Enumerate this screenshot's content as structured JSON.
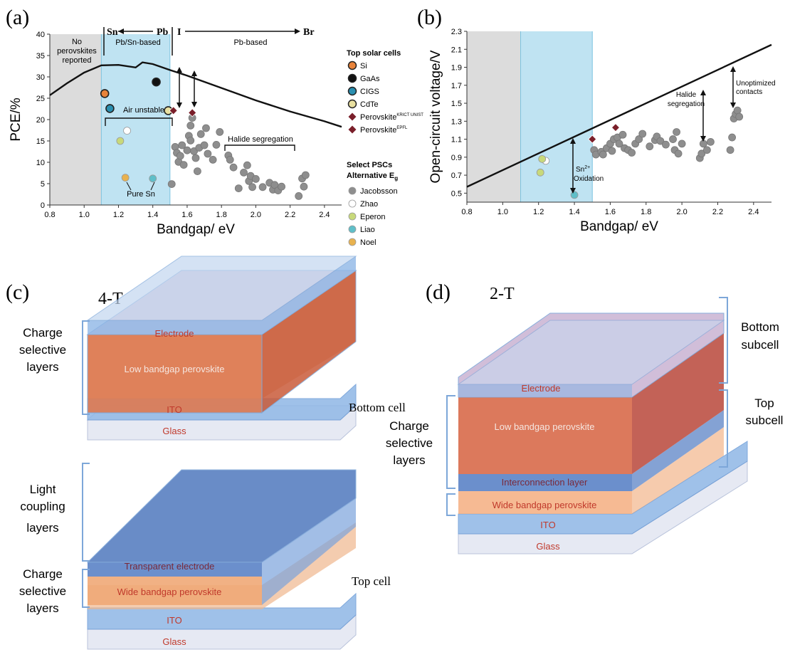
{
  "panel_labels": {
    "a": "(a)",
    "b": "(b)",
    "c": "(c)",
    "d": "(d)"
  },
  "colors": {
    "gray_region": "#dcdcdc",
    "blue_region": "#bfe3f2",
    "curve": "#111111",
    "jacobsson": "#8e8e8e",
    "zhao": "#ffffff",
    "eperon": "#c8d97a",
    "liao": "#5fbfc9",
    "noel": "#e8b24f",
    "si": "#e8833a",
    "gaas": "#111111",
    "cigs": "#2a8fb0",
    "cdte": "#e9e0a0",
    "perovskite": "#7a1f2a",
    "layer_text": "#c0392b"
  },
  "chart_data": [
    {
      "type": "scatter",
      "panel": "(a)",
      "xlabel": "Bandgap/ eV",
      "ylabel": "PCE/%",
      "xlim": [
        0.8,
        2.5
      ],
      "ylim": [
        0,
        40
      ],
      "xticks": [
        "0.8",
        "1.0",
        "1.2",
        "1.4",
        "1.6",
        "1.8",
        "2.0",
        "2.2",
        "2.4"
      ],
      "yticks": [
        "0",
        "5",
        "10",
        "15",
        "20",
        "25",
        "30",
        "35",
        "40"
      ],
      "top_labels": {
        "sn": "Sn",
        "pb": "Pb",
        "i": "I",
        "br": "Br"
      },
      "region_labels": {
        "none": [
          "No",
          "perovskites",
          "reported"
        ],
        "pbsn": "Pb/Sn-based",
        "pb": "Pb-based"
      },
      "annotations": {
        "air_unstable": "Air unstable",
        "pure_sn": "Pure Sn",
        "halide": "Halide segregation"
      },
      "legend_top_title": "Top solar cells",
      "legend_top": [
        {
          "name": "Si",
          "sup": ""
        },
        {
          "name": "GaAs",
          "sup": ""
        },
        {
          "name": "CIGS",
          "sup": ""
        },
        {
          "name": "CdTe",
          "sup": ""
        },
        {
          "name": "Perovskite",
          "sup": "KRICT UNIST"
        },
        {
          "name": "Perovskite",
          "sup": "EPFL"
        }
      ],
      "legend_psc_title": "Select PSCs",
      "legend_psc_subtitle": "Alternative E",
      "legend_psc_subtitle_sub": "g",
      "legend_psc": [
        "Jacobsson",
        "Zhao",
        "Eperon",
        "Liao",
        "Noel"
      ],
      "limit_curve": [
        [
          0.8,
          25.7
        ],
        [
          0.9,
          28.5
        ],
        [
          1.0,
          31.0
        ],
        [
          1.1,
          32.7
        ],
        [
          1.2,
          32.8
        ],
        [
          1.3,
          32.2
        ],
        [
          1.34,
          33.4
        ],
        [
          1.4,
          33.0
        ],
        [
          1.5,
          31.6
        ],
        [
          1.6,
          30.3
        ],
        [
          1.8,
          27.4
        ],
        [
          2.0,
          24.5
        ],
        [
          2.2,
          21.9
        ],
        [
          2.4,
          19.6
        ],
        [
          2.5,
          18.3
        ]
      ],
      "top_cells": [
        {
          "name": "Si",
          "x": 1.12,
          "y": 26.1
        },
        {
          "name": "GaAs",
          "x": 1.42,
          "y": 28.8
        },
        {
          "name": "CIGS",
          "x": 1.15,
          "y": 22.6
        },
        {
          "name": "CdTe",
          "x": 1.49,
          "y": 22.1
        },
        {
          "name": "KRICT",
          "x": 1.52,
          "y": 22.1
        },
        {
          "name": "EPFL",
          "x": 1.63,
          "y": 21.6
        }
      ],
      "series": [
        {
          "name": "Zhao",
          "points": [
            [
              1.25,
              17.4
            ]
          ]
        },
        {
          "name": "Eperon",
          "points": [
            [
              1.21,
              15.0
            ]
          ]
        },
        {
          "name": "Noel",
          "points": [
            [
              1.24,
              6.4
            ]
          ]
        },
        {
          "name": "Liao",
          "points": [
            [
              1.4,
              6.2
            ]
          ]
        },
        {
          "name": "Jacobsson",
          "points": [
            [
              1.51,
              4.9
            ],
            [
              1.53,
              13.6
            ],
            [
              1.54,
              12.2
            ],
            [
              1.55,
              10.1
            ],
            [
              1.56,
              11.5
            ],
            [
              1.57,
              14.0
            ],
            [
              1.58,
              9.4
            ],
            [
              1.6,
              12.8
            ],
            [
              1.61,
              16.2
            ],
            [
              1.62,
              15.1
            ],
            [
              1.62,
              18.6
            ],
            [
              1.63,
              20.4
            ],
            [
              1.64,
              12.6
            ],
            [
              1.65,
              11.0
            ],
            [
              1.66,
              7.9
            ],
            [
              1.67,
              13.4
            ],
            [
              1.68,
              16.6
            ],
            [
              1.7,
              14.0
            ],
            [
              1.71,
              18.0
            ],
            [
              1.72,
              12.0
            ],
            [
              1.75,
              10.6
            ],
            [
              1.77,
              14.1
            ],
            [
              1.79,
              17.1
            ],
            [
              1.84,
              11.6
            ],
            [
              1.85,
              10.6
            ],
            [
              1.87,
              8.8
            ],
            [
              1.9,
              3.9
            ],
            [
              1.93,
              7.6
            ],
            [
              1.95,
              9.3
            ],
            [
              1.96,
              5.6
            ],
            [
              1.97,
              6.8
            ],
            [
              1.98,
              4.2
            ],
            [
              2.0,
              6.1
            ],
            [
              2.04,
              4.2
            ],
            [
              2.08,
              5.2
            ],
            [
              2.1,
              3.6
            ],
            [
              2.11,
              4.7
            ],
            [
              2.13,
              3.4
            ],
            [
              2.15,
              4.3
            ],
            [
              2.25,
              2.1
            ],
            [
              2.27,
              6.2
            ],
            [
              2.28,
              4.3
            ],
            [
              2.29,
              7.0
            ]
          ]
        }
      ]
    },
    {
      "type": "scatter",
      "panel": "(b)",
      "xlabel": "Bandgap/ eV",
      "ylabel": "Open-circuit voltage/V",
      "xlim": [
        0.8,
        2.5
      ],
      "ylim": [
        0.4,
        2.3
      ],
      "xticks": [
        "0.8",
        "1.0",
        "1.2",
        "1.4",
        "1.6",
        "1.8",
        "2.0",
        "2.2",
        "2.4"
      ],
      "yticks": [
        "0.5",
        "0.7",
        "0.9",
        "1.1",
        "1.3",
        "1.5",
        "1.7",
        "1.9",
        "2.1",
        "2.3"
      ],
      "annotations": {
        "sn_ox": "Sn",
        "sn_ox_sup": "2+",
        "sn_ox2": "Oxidation",
        "halide": [
          "Halide",
          "segregation"
        ],
        "contacts": [
          "Unoptimized",
          "contacts"
        ]
      },
      "limit_line": [
        [
          0.8,
          0.57
        ],
        [
          2.5,
          2.15
        ]
      ],
      "top_cells": [
        {
          "name": "KRICT",
          "x": 1.5,
          "y": 1.1
        },
        {
          "name": "EPFL",
          "x": 1.63,
          "y": 1.23
        }
      ],
      "series": [
        {
          "name": "Zhao",
          "points": [
            [
              1.24,
              0.86
            ]
          ]
        },
        {
          "name": "Eperon",
          "points": [
            [
              1.21,
              0.73
            ],
            [
              1.22,
              0.88
            ]
          ]
        },
        {
          "name": "Liao",
          "points": [
            [
              1.4,
              0.48
            ]
          ]
        },
        {
          "name": "Jacobsson",
          "points": [
            [
              1.51,
              0.98
            ],
            [
              1.52,
              0.93
            ],
            [
              1.55,
              0.96
            ],
            [
              1.56,
              0.93
            ],
            [
              1.58,
              1.0
            ],
            [
              1.6,
              1.05
            ],
            [
              1.61,
              0.97
            ],
            [
              1.62,
              1.1
            ],
            [
              1.64,
              1.12
            ],
            [
              1.65,
              1.05
            ],
            [
              1.67,
              1.15
            ],
            [
              1.68,
              1.0
            ],
            [
              1.7,
              0.98
            ],
            [
              1.72,
              0.95
            ],
            [
              1.74,
              1.05
            ],
            [
              1.76,
              1.1
            ],
            [
              1.78,
              1.16
            ],
            [
              1.82,
              1.02
            ],
            [
              1.85,
              1.09
            ],
            [
              1.86,
              1.13
            ],
            [
              1.88,
              1.08
            ],
            [
              1.91,
              1.04
            ],
            [
              1.95,
              1.1
            ],
            [
              1.96,
              0.98
            ],
            [
              1.97,
              1.18
            ],
            [
              1.98,
              0.94
            ],
            [
              2.0,
              1.05
            ],
            [
              2.1,
              0.89
            ],
            [
              2.11,
              0.94
            ],
            [
              2.12,
              1.05
            ],
            [
              2.14,
              0.98
            ],
            [
              2.16,
              1.07
            ],
            [
              2.27,
              0.98
            ],
            [
              2.28,
              1.12
            ],
            [
              2.29,
              1.33
            ],
            [
              2.3,
              1.38
            ],
            [
              2.31,
              1.42
            ],
            [
              2.32,
              1.35
            ]
          ]
        }
      ]
    }
  ],
  "diagram_c": {
    "title": "4-T",
    "bottom_cell": {
      "electrode": "Electrode",
      "absorber": "Low bandgap perovskite",
      "ito": "ITO",
      "glass": "Glass",
      "label": "Bottom cell"
    },
    "top_cell": {
      "electrode": "Transparent electrode",
      "absorber": "Wide bandgap perovskite",
      "ito": "ITO",
      "glass": "Glass",
      "label": "Top cell"
    },
    "brace_labels": {
      "charge_selective_1": [
        "Charge",
        "selective",
        "layers"
      ],
      "light_coupling": [
        "Light",
        "coupling",
        "layers"
      ],
      "charge_selective_2": [
        "Charge",
        "selective",
        "layers"
      ]
    }
  },
  "diagram_d": {
    "title": "2-T",
    "layers": {
      "electrode": "Electrode",
      "low": "Low bandgap perovskite",
      "interconnect": "Interconnection layer",
      "wide": "Wide bandgap perovskite",
      "ito": "ITO",
      "glass": "Glass"
    },
    "brace_labels": {
      "bottom_subcell": [
        "Bottom",
        "subcell"
      ],
      "top_subcell": [
        "Top",
        "subcell"
      ],
      "charge_selective": [
        "Charge",
        "selective",
        "layers"
      ]
    }
  }
}
